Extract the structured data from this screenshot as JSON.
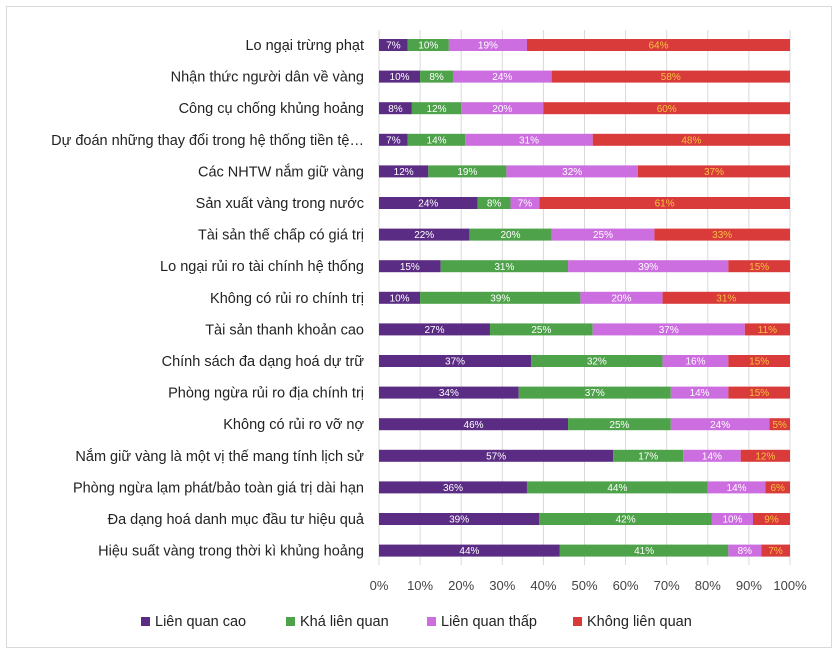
{
  "chart_data": {
    "type": "bar",
    "orientation": "horizontal",
    "stacked": true,
    "percent": true,
    "categories": [
      "Lo ngại trừng phạt",
      "Nhận thức người dân về vàng",
      "Công cụ chống khủng hoảng",
      "Dự đoán những thay đổi trong hệ thống tiền tệ…",
      "Các NHTW nắm giữ vàng",
      "Sản xuất vàng trong nước",
      "Tài sản thế chấp có giá trị",
      "Lo ngại rủi ro tài chính hệ thống",
      "Không có rủi ro chính trị",
      "Tài sản thanh khoản cao",
      "Chính sách đa dạng hoá dự trữ",
      "Phòng ngừa rủi ro địa chính trị",
      "Không có rủi ro vỡ nợ",
      "Nắm giữ vàng là một vị thế mang tính lịch sử",
      "Phòng ngừa lạm phát/bảo toàn giá trị dài hạn",
      "Đa dạng hoá danh mục đầu tư hiệu quả",
      "Hiệu suất vàng trong thời kì khủng hoảng"
    ],
    "series": [
      {
        "name": "Liên quan cao",
        "color": "#5b2c83",
        "label_color": "#ffffff",
        "values": [
          7,
          10,
          8,
          7,
          12,
          24,
          22,
          15,
          10,
          27,
          37,
          34,
          46,
          57,
          36,
          39,
          44
        ]
      },
      {
        "name": "Khá liên quan",
        "color": "#4ea24a",
        "label_color": "#ffffff",
        "values": [
          10,
          8,
          12,
          14,
          19,
          8,
          20,
          31,
          39,
          25,
          32,
          37,
          25,
          17,
          44,
          42,
          41
        ]
      },
      {
        "name": "Liên quan thấp",
        "color": "#cc6ee0",
        "label_color": "#ffffff",
        "values": [
          19,
          24,
          20,
          31,
          32,
          7,
          25,
          39,
          20,
          37,
          16,
          14,
          24,
          14,
          14,
          10,
          8
        ]
      },
      {
        "name": "Không liên quan",
        "color": "#d93a3a",
        "label_color": "#f5c242",
        "values": [
          64,
          58,
          60,
          48,
          37,
          61,
          33,
          15,
          31,
          11,
          15,
          15,
          5,
          12,
          6,
          9,
          7
        ]
      }
    ],
    "x_ticks": [
      "0%",
      "10%",
      "20%",
      "30%",
      "40%",
      "50%",
      "60%",
      "70%",
      "80%",
      "90%",
      "100%"
    ],
    "xlim": [
      0,
      100
    ],
    "title": "",
    "xlabel": "",
    "ylabel": "",
    "grid": "vertical",
    "legend": "bottom"
  }
}
